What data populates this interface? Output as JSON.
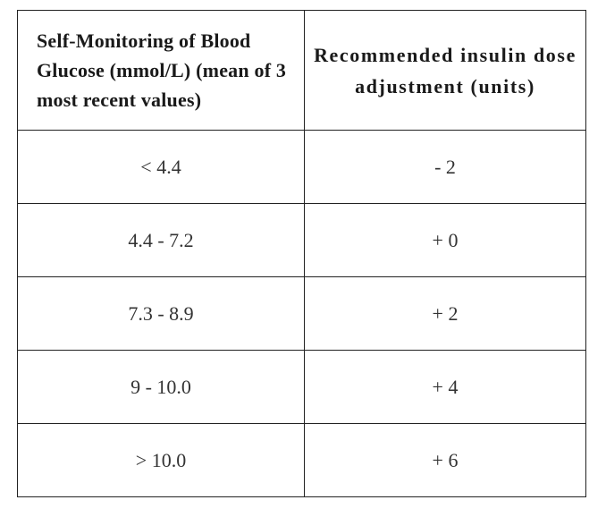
{
  "table": {
    "headers": [
      "Self-Monitoring of Blood Glucose (mmol/L) (mean of 3 most recent values)",
      "Recommended insulin dose adjustment (units)"
    ],
    "rows": [
      [
        "< 4.4",
        "- 2"
      ],
      [
        "4.4 - 7.2",
        "+ 0"
      ],
      [
        "7.3 - 8.9",
        "+ 2"
      ],
      [
        "9 - 10.0",
        "+ 4"
      ],
      [
        "> 10.0",
        "+ 6"
      ]
    ]
  }
}
